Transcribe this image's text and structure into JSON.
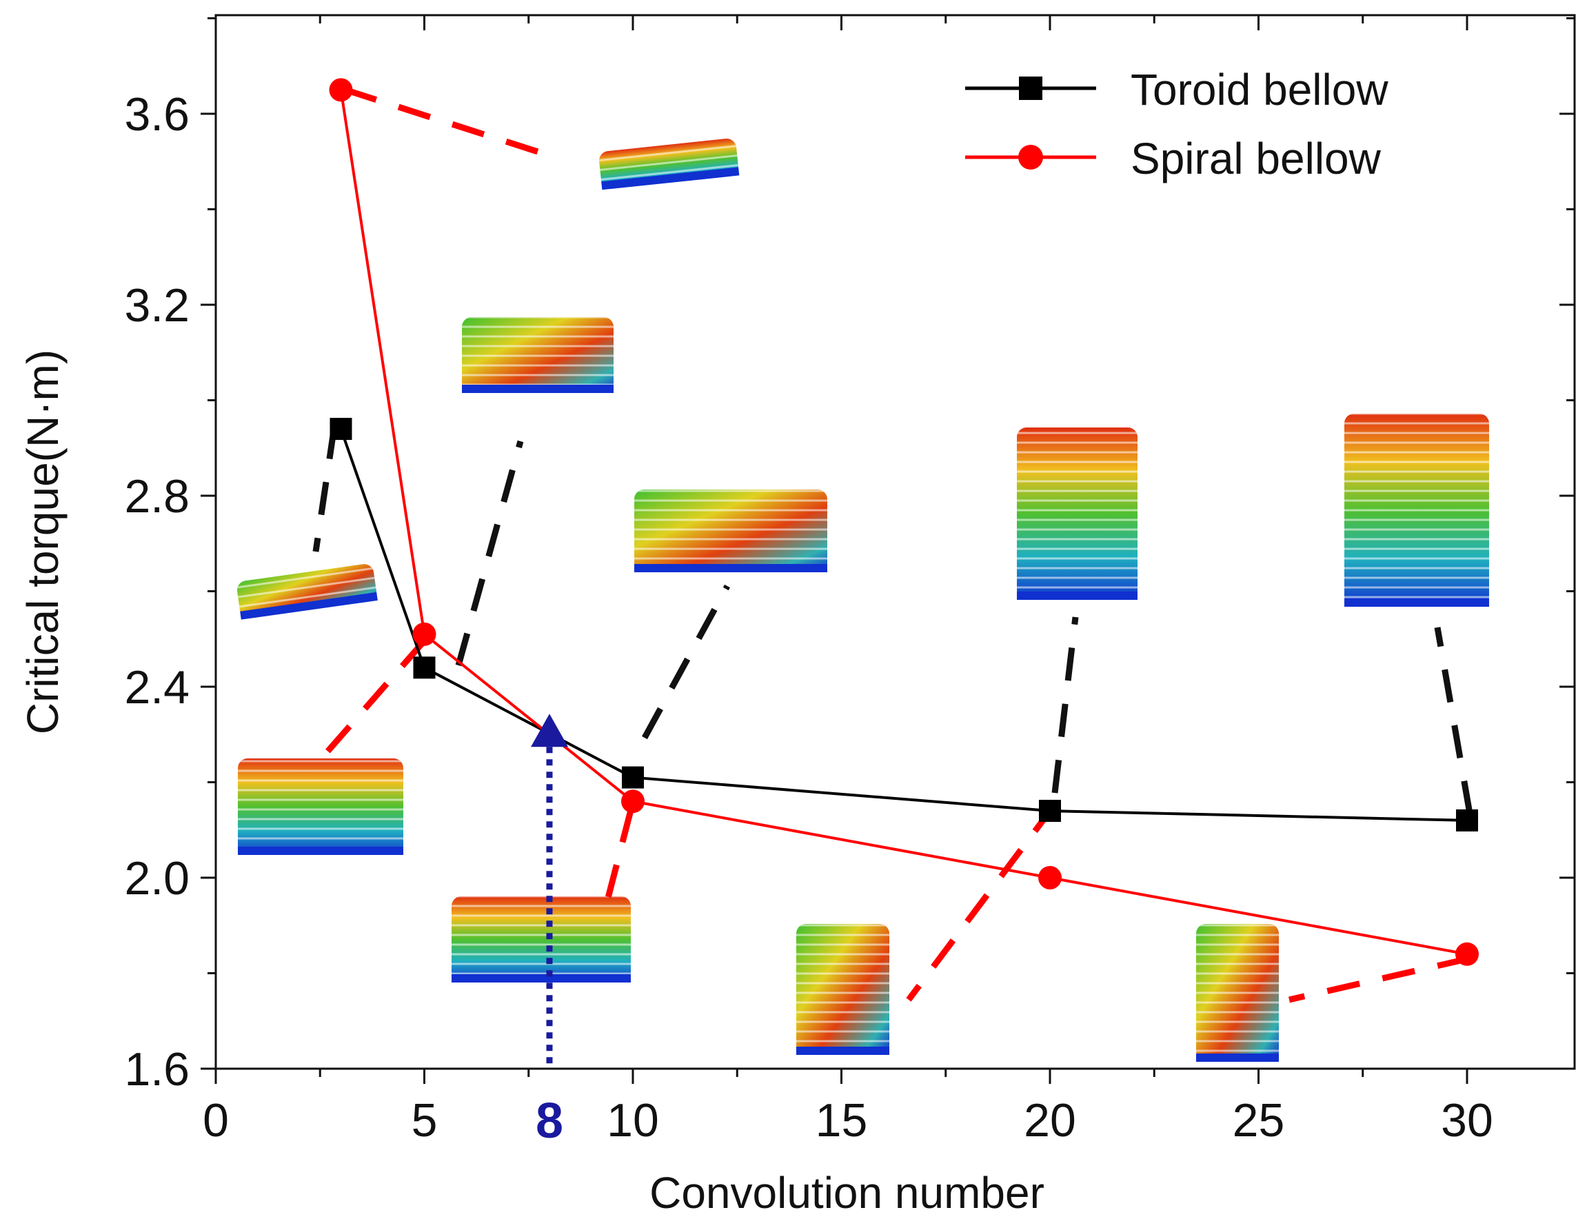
{
  "chart_data": {
    "type": "line",
    "xlabel": "Convolution number",
    "ylabel": "Critical torque(N·m)",
    "xlim": [
      0,
      32.5
    ],
    "ylim": [
      1.6,
      3.85
    ],
    "x_major_ticks": [
      0,
      5,
      10,
      15,
      20,
      25,
      30
    ],
    "x_minor_ticks": [
      2.5,
      7.5,
      12.5,
      17.5,
      22.5,
      27.5
    ],
    "y_major_ticks": [
      1.6,
      2.0,
      2.4,
      2.8,
      3.2,
      3.6
    ],
    "y_minor_ticks": [
      1.8,
      2.2,
      2.6,
      3.0,
      3.4,
      3.8
    ],
    "x_tick_labels": [
      "0",
      "5",
      "10",
      "15",
      "20",
      "25",
      "30"
    ],
    "y_tick_labels": [
      "1.6",
      "2.0",
      "2.4",
      "2.8",
      "3.2",
      "3.6"
    ],
    "legend_position": "top-right",
    "series": [
      {
        "name": "Toroid bellow",
        "color": "#000000",
        "marker": "square",
        "x": [
          3,
          5,
          10,
          20,
          30
        ],
        "y": [
          2.94,
          2.44,
          2.21,
          2.14,
          2.12
        ]
      },
      {
        "name": "Spiral bellow",
        "color": "#ff0000",
        "marker": "circle",
        "x": [
          3,
          5,
          10,
          20,
          30
        ],
        "y": [
          3.65,
          2.51,
          2.16,
          2.0,
          1.84
        ]
      }
    ],
    "highlight": {
      "x": 8,
      "y": 2.3,
      "label": "8",
      "color": "#1a1a9e",
      "marker": "triangle"
    },
    "insets": [
      {
        "series": "Toroid bellow",
        "x": 3,
        "shape": "flat-disk"
      },
      {
        "series": "Spiral bellow",
        "x": 3,
        "shape": "flat-disk"
      },
      {
        "series": "Toroid bellow",
        "x": 5,
        "shape": "short-stack"
      },
      {
        "series": "Spiral bellow",
        "x": 5,
        "shape": "short-stack"
      },
      {
        "series": "Toroid bellow",
        "x": 10,
        "shape": "tilted-ring"
      },
      {
        "series": "Spiral bellow",
        "x": 10,
        "shape": "tilted-ring"
      },
      {
        "series": "Spiral bellow",
        "x": 20,
        "shape": "tall-column"
      },
      {
        "series": "Toroid bellow",
        "x": 20,
        "shape": "tall-column"
      },
      {
        "series": "Spiral bellow",
        "x": 30,
        "shape": "tall-column"
      },
      {
        "series": "Toroid bellow",
        "x": 30,
        "shape": "tall-column"
      }
    ]
  }
}
